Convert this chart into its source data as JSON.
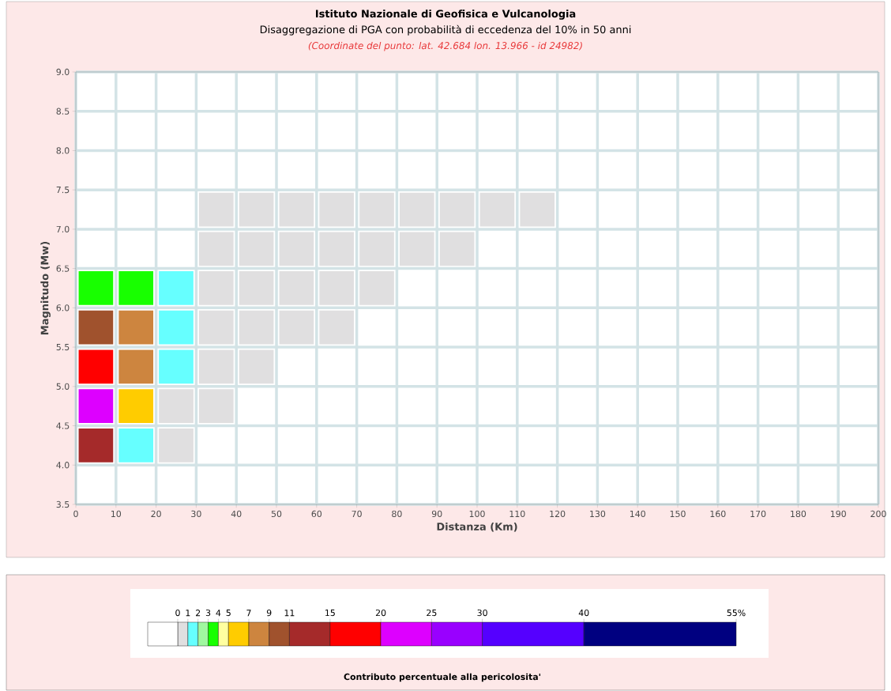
{
  "chart_data": {
    "type": "heatmap",
    "title": "Istituto Nazionale di Geofisica e Vulcanologia",
    "subtitle": "Disaggregazione di PGA con probabilità di eccedenza del 10% in 50 anni",
    "annotations": [
      "(Coordinate del punto: lat. 42.684 lon. 13.966 - id 24982)"
    ],
    "xlabel": "Distanza (Km)",
    "ylabel": "Magnitudo (Mw)",
    "clabel": "Contributo percentuale alla pericolosita'",
    "x": [
      5,
      15,
      25,
      35,
      45,
      55,
      65,
      75,
      85,
      95,
      105,
      115
    ],
    "y": [
      7.25,
      6.75,
      6.25,
      5.75,
      5.25,
      4.75,
      4.25
    ],
    "cells": [
      [
        null,
        null,
        null,
        0.3,
        0.3,
        0.3,
        0.3,
        0.3,
        0.3,
        0.3,
        0.3,
        0.3
      ],
      [
        null,
        null,
        null,
        0.3,
        0.3,
        0.3,
        0.3,
        0.3,
        0.3,
        0.3,
        null,
        null
      ],
      [
        3.2,
        3.2,
        1.2,
        0.3,
        0.3,
        0.3,
        0.3,
        0.3,
        null,
        null,
        null,
        null
      ],
      [
        9.5,
        7.5,
        1.2,
        0.3,
        0.3,
        0.3,
        0.3,
        null,
        null,
        null,
        null,
        null
      ],
      [
        16,
        7.5,
        1.2,
        0.3,
        0.3,
        null,
        null,
        null,
        null,
        null,
        null,
        null
      ],
      [
        21,
        5.5,
        0.3,
        0.3,
        null,
        null,
        null,
        null,
        null,
        null,
        null,
        null
      ],
      [
        12,
        1.2,
        0.3,
        null,
        null,
        null,
        null,
        null,
        null,
        null,
        null,
        null
      ]
    ],
    "xlim": [
      0,
      200
    ],
    "xticks": [
      0,
      10,
      20,
      30,
      40,
      50,
      60,
      70,
      80,
      90,
      100,
      110,
      120,
      130,
      140,
      150,
      160,
      170,
      180,
      190,
      200
    ],
    "ylim": [
      3.5,
      9.0
    ],
    "yticks": [
      3.5,
      {
        "value": 4,
        "label": "4.0"
      },
      4.5,
      {
        "value": 5,
        "label": "5.0"
      },
      5.5,
      {
        "value": 6,
        "label": "6.0"
      },
      6.5,
      {
        "value": 7,
        "label": "7.0"
      },
      7.5,
      {
        "value": 8,
        "label": "8.0"
      },
      8.5,
      {
        "value": 9,
        "label": "9.0"
      }
    ],
    "clim": [
      0,
      55
    ],
    "cticks": [
      0,
      1,
      2,
      3,
      4,
      5,
      7,
      9,
      11,
      15,
      20,
      25,
      30,
      40,
      {
        "value": 55,
        "label": "55%"
      }
    ],
    "grid": true
  }
}
